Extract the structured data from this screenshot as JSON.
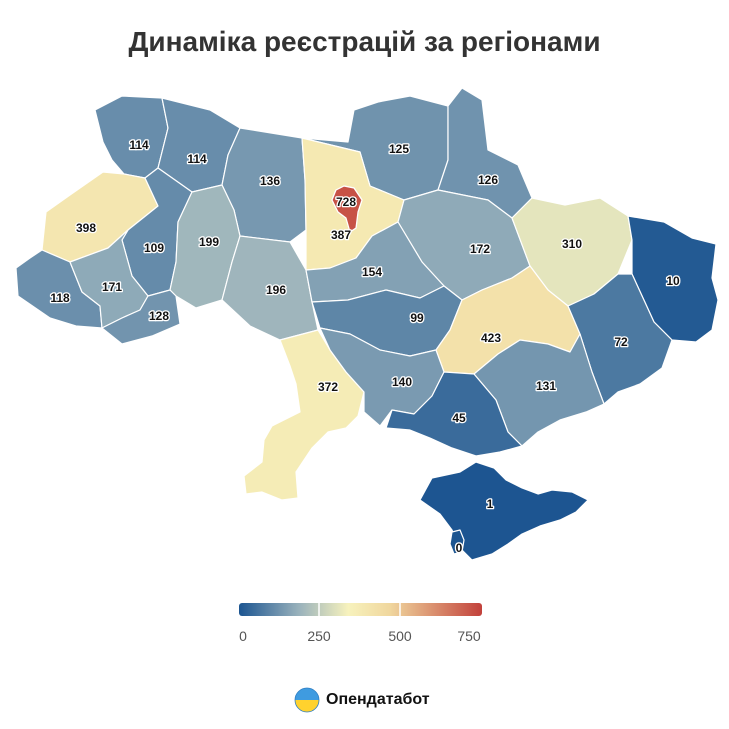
{
  "title": "Динаміка реєстрацій за регіонами",
  "brand": {
    "name": "Опендатабот",
    "logo_icon": "opendatabot-logo-icon"
  },
  "legend": {
    "ticks": [
      "0",
      "250",
      "500",
      "750"
    ],
    "min": 0,
    "max": 760,
    "colors": [
      "#1c5591",
      "#9bb3bc",
      "#f7f2bd",
      "#f0d79e",
      "#c2413b"
    ]
  },
  "regions": [
    {
      "id": "volyn",
      "value": "114"
    },
    {
      "id": "rivne",
      "value": "114"
    },
    {
      "id": "zhytomyr",
      "value": "136"
    },
    {
      "id": "chernihiv",
      "value": "125"
    },
    {
      "id": "sumy",
      "value": "126"
    },
    {
      "id": "lviv",
      "value": "398"
    },
    {
      "id": "ternopil",
      "value": "109"
    },
    {
      "id": "khmelnytskyi",
      "value": "199"
    },
    {
      "id": "kyiv-city",
      "value": "728"
    },
    {
      "id": "kyiv-oblast",
      "value": "387"
    },
    {
      "id": "poltava",
      "value": "172"
    },
    {
      "id": "kharkiv",
      "value": "310"
    },
    {
      "id": "luhansk",
      "value": "10"
    },
    {
      "id": "zakarpattia",
      "value": "118"
    },
    {
      "id": "ivano-frankivsk",
      "value": "171"
    },
    {
      "id": "chernivtsi",
      "value": "128"
    },
    {
      "id": "vinnytsia",
      "value": "196"
    },
    {
      "id": "cherkasy",
      "value": "154"
    },
    {
      "id": "kirovohrad",
      "value": "99"
    },
    {
      "id": "dnipropetrovsk",
      "value": "423"
    },
    {
      "id": "donetsk",
      "value": "72"
    },
    {
      "id": "odesa",
      "value": "372"
    },
    {
      "id": "mykolaiv",
      "value": "140"
    },
    {
      "id": "zaporizhzhia",
      "value": "131"
    },
    {
      "id": "kherson",
      "value": "45"
    },
    {
      "id": "crimea",
      "value": "1"
    },
    {
      "id": "sevastopol",
      "value": "0"
    }
  ]
}
